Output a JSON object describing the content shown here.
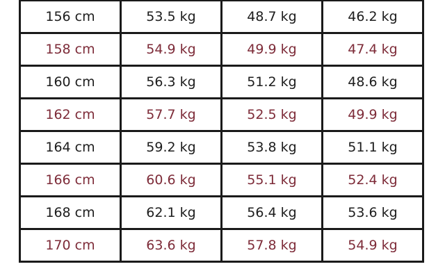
{
  "colors": {
    "text": "#1c1c1c",
    "alt_text": "#7d2b38",
    "border": "#1a1a1a"
  },
  "rows": [
    [
      "156 cm",
      "53.5 kg",
      "48.7 kg",
      "46.2 kg"
    ],
    [
      "158 cm",
      "54.9 kg",
      "49.9 kg",
      "47.4 kg"
    ],
    [
      "160 cm",
      "56.3 kg",
      "51.2 kg",
      "48.6 kg"
    ],
    [
      "162 cm",
      "57.7 kg",
      "52.5 kg",
      "49.9 kg"
    ],
    [
      "164 cm",
      "59.2 kg",
      "53.8 kg",
      "51.1 kg"
    ],
    [
      "166 cm",
      "60.6 kg",
      "55.1 kg",
      "52.4 kg"
    ],
    [
      "168 cm",
      "62.1 kg",
      "56.4 kg",
      "53.6 kg"
    ],
    [
      "170 cm",
      "63.6 kg",
      "57.8 kg",
      "54.9 kg"
    ]
  ]
}
